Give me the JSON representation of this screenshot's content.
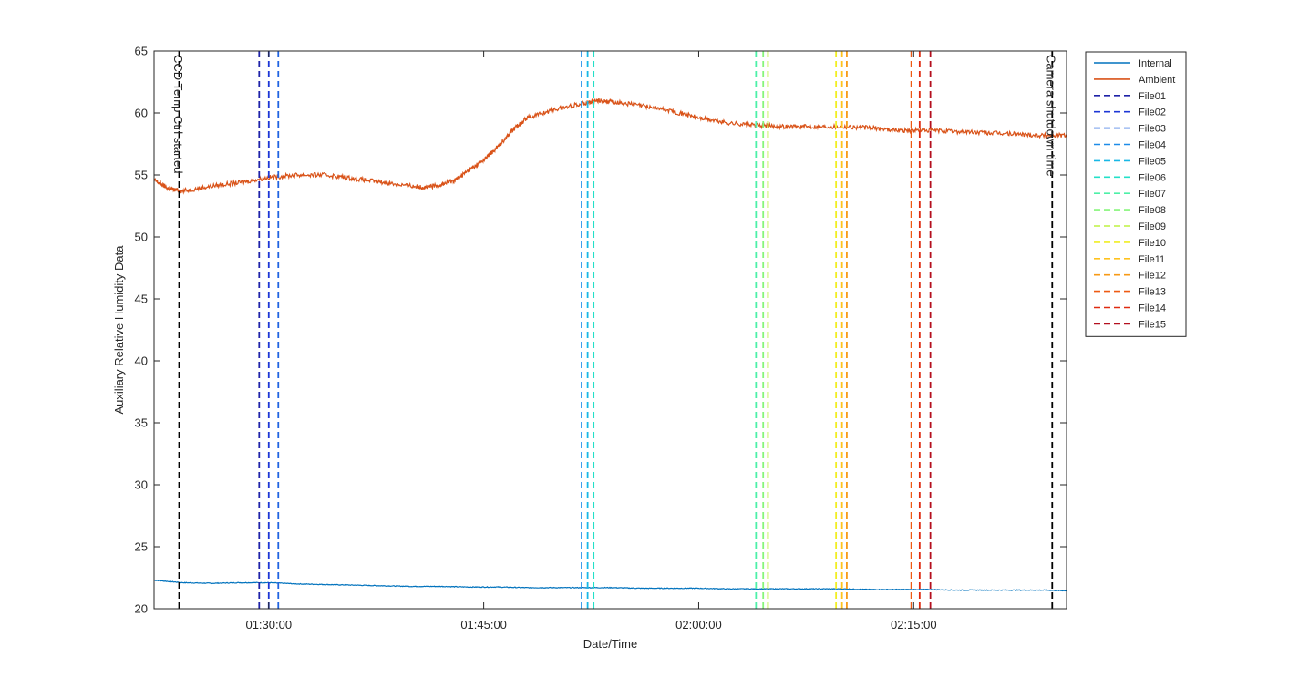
{
  "chart_data": {
    "type": "line",
    "title": "",
    "xlabel": "Date/Time",
    "ylabel": "Auxiliary Relative Humidity Data",
    "xlim": [
      "01:22:00",
      "02:25:40"
    ],
    "ylim": [
      20,
      65
    ],
    "grid": false,
    "legend_position": "outside-top-right",
    "x_ticks": [
      "01:30:00",
      "01:45:00",
      "02:00:00",
      "02:15:00"
    ],
    "y_ticks": [
      20,
      25,
      30,
      35,
      40,
      45,
      50,
      55,
      60,
      65
    ],
    "series": [
      {
        "name": "Internal",
        "color": "#0072BD",
        "x": [
          "01:22:00",
          "01:24:00",
          "01:26:00",
          "01:28:00",
          "01:30:00",
          "01:32:00",
          "01:34:00",
          "01:36:00",
          "01:38:00",
          "01:40:00",
          "01:42:00",
          "01:44:00",
          "01:46:00",
          "01:48:00",
          "01:50:00",
          "01:52:00",
          "01:54:00",
          "01:56:00",
          "01:58:00",
          "02:00:00",
          "02:02:00",
          "02:04:00",
          "02:06:00",
          "02:08:00",
          "02:10:00",
          "02:12:00",
          "02:14:00",
          "02:16:00",
          "02:18:00",
          "02:20:00",
          "02:22:00",
          "02:24:00",
          "02:25:40"
        ],
        "y": [
          22.3,
          22.1,
          22.05,
          22.1,
          22.1,
          22.0,
          21.95,
          21.9,
          21.85,
          21.8,
          21.8,
          21.75,
          21.75,
          21.7,
          21.7,
          21.7,
          21.7,
          21.65,
          21.65,
          21.65,
          21.6,
          21.6,
          21.6,
          21.6,
          21.6,
          21.55,
          21.55,
          21.55,
          21.5,
          21.5,
          21.5,
          21.5,
          21.45
        ]
      },
      {
        "name": "Ambient",
        "color": "#D95319",
        "x": [
          "01:22:00",
          "01:23:00",
          "01:24:00",
          "01:26:00",
          "01:28:00",
          "01:30:00",
          "01:32:00",
          "01:34:00",
          "01:36:00",
          "01:38:00",
          "01:40:00",
          "01:41:00",
          "01:42:00",
          "01:43:00",
          "01:44:00",
          "01:45:00",
          "01:46:00",
          "01:47:00",
          "01:48:00",
          "01:50:00",
          "01:52:00",
          "01:53:00",
          "01:54:00",
          "01:56:00",
          "01:58:00",
          "02:00:00",
          "02:02:00",
          "02:04:00",
          "02:06:00",
          "02:08:00",
          "02:10:00",
          "02:12:00",
          "02:14:00",
          "02:16:00",
          "02:18:00",
          "02:20:00",
          "02:22:00",
          "02:24:00",
          "02:25:40"
        ],
        "y": [
          54.6,
          53.9,
          53.7,
          54.1,
          54.4,
          54.8,
          55.0,
          55.0,
          54.7,
          54.4,
          54.1,
          54.0,
          54.2,
          54.6,
          55.4,
          56.2,
          57.3,
          58.6,
          59.6,
          60.3,
          60.8,
          61.0,
          60.9,
          60.6,
          60.2,
          59.6,
          59.2,
          59.0,
          58.9,
          58.9,
          58.9,
          58.8,
          58.6,
          58.6,
          58.5,
          58.4,
          58.3,
          58.2,
          58.2
        ]
      }
    ],
    "event_lines": [
      {
        "time": "01:23:45",
        "color": "#000000",
        "label": "CCD Temp Ctrl started"
      },
      {
        "time": "02:24:40",
        "color": "#000000",
        "label": "Camera shutdown time"
      }
    ],
    "file_markers": [
      {
        "name": "File01",
        "color": "#1E22A8",
        "time": "01:29:20"
      },
      {
        "name": "File02",
        "color": "#1C36D6",
        "time": "01:30:00"
      },
      {
        "name": "File03",
        "color": "#2063E0",
        "time": "01:30:40"
      },
      {
        "name": "File04",
        "color": "#1E8CE8",
        "time": "01:51:50"
      },
      {
        "name": "File05",
        "color": "#19B8E6",
        "time": "01:52:15"
      },
      {
        "name": "File06",
        "color": "#23E0C8",
        "time": "01:52:40"
      },
      {
        "name": "File07",
        "color": "#4DF0A8",
        "time": "02:04:00"
      },
      {
        "name": "File08",
        "color": "#86F57A",
        "time": "02:04:30"
      },
      {
        "name": "File09",
        "color": "#BDF241",
        "time": "02:04:50"
      },
      {
        "name": "File10",
        "color": "#F1EE23",
        "time": "02:09:35"
      },
      {
        "name": "File11",
        "color": "#FFC21E",
        "time": "02:10:00"
      },
      {
        "name": "File12",
        "color": "#F79A16",
        "time": "02:10:20"
      },
      {
        "name": "File13",
        "color": "#EE5A12",
        "time": "02:14:50"
      },
      {
        "name": "File14",
        "color": "#DF2A10",
        "time": "02:15:25"
      },
      {
        "name": "File15",
        "color": "#B40F1E",
        "time": "02:16:10"
      }
    ]
  }
}
